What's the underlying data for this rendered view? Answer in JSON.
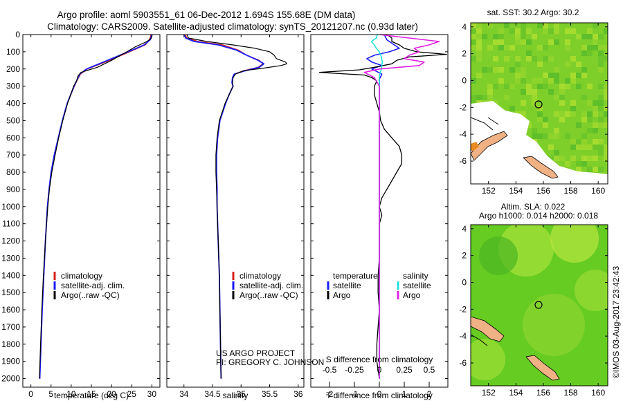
{
  "header": {
    "line1": "Argo profile: aoml 5903551_61 06-Dec-2012 1.694S 155.68E (DM data)",
    "line2": "Climatology: CARS2009. Satellite-adjusted climatology: synTS_20121207.nc (0.93d later)"
  },
  "colors": {
    "climatology": "#d42020",
    "satellite": "#1a1aff",
    "argo": "#000000",
    "salinity_satellite": "#22e0e0",
    "salinity_argo": "#e020e0"
  },
  "chart_data": [
    {
      "type": "line",
      "id": "temperature",
      "xlabel": "temperature (deg C)",
      "ylabel": "",
      "xlim": [
        -2,
        32
      ],
      "ylim": [
        2050,
        0
      ],
      "xticks": [
        0,
        5,
        10,
        15,
        20,
        25,
        30
      ],
      "yticks": [
        0,
        100,
        200,
        300,
        400,
        500,
        600,
        700,
        800,
        900,
        1000,
        1100,
        1200,
        1300,
        1400,
        1500,
        1600,
        1700,
        1800,
        1900,
        2000
      ],
      "legend": [
        "climatology",
        "satellite-adj. clim.",
        "Argo(..raw -QC)"
      ],
      "series": [
        {
          "name": "climatology",
          "color": "#d42020",
          "width": 1.4,
          "depth": [
            0,
            30,
            60,
            100,
            150,
            200,
            230,
            260,
            300,
            400,
            500,
            600,
            700,
            800,
            900,
            1000,
            1200,
            1400,
            1600,
            1800,
            2000
          ],
          "value": [
            29.8,
            29.4,
            28.4,
            24.5,
            19.5,
            14.0,
            12.3,
            11.6,
            10.8,
            9.0,
            7.8,
            6.8,
            5.8,
            5.0,
            4.5,
            4.1,
            3.6,
            3.2,
            2.8,
            2.5,
            2.2
          ]
        },
        {
          "name": "satellite-adj. clim.",
          "color": "#1a1aff",
          "width": 1.8,
          "depth": [
            0,
            30,
            60,
            100,
            150,
            200,
            230,
            260,
            300,
            400,
            500,
            600,
            700,
            800,
            900,
            1000,
            1200,
            1400,
            1600,
            1800,
            2000
          ],
          "value": [
            30.0,
            29.6,
            28.1,
            24.1,
            19.0,
            13.8,
            12.1,
            11.5,
            10.7,
            9.0,
            7.8,
            6.8,
            5.8,
            5.0,
            4.5,
            4.1,
            3.6,
            3.2,
            2.8,
            2.5,
            2.2
          ]
        },
        {
          "name": "Argo(..raw -QC)",
          "color": "#000000",
          "width": 1.2,
          "depth": [
            0,
            20,
            40,
            70,
            100,
            150,
            190,
            220,
            240,
            270,
            300,
            400,
            500,
            600,
            700,
            800,
            900,
            1000,
            1200,
            1400,
            1600,
            1800,
            2000
          ],
          "value": [
            30.1,
            29.9,
            28.8,
            26.0,
            23.8,
            20.0,
            16.5,
            12.4,
            11.7,
            11.3,
            10.6,
            9.1,
            7.9,
            6.9,
            6.0,
            5.2,
            4.6,
            4.2,
            3.6,
            3.1,
            2.7,
            2.4,
            2.1
          ]
        }
      ]
    },
    {
      "type": "line",
      "id": "salinity",
      "xlabel": "salinity",
      "xlim": [
        33.7,
        36.1
      ],
      "ylim": [
        2050,
        0
      ],
      "xticks": [
        34,
        34.5,
        35,
        35.5,
        36
      ],
      "legend": [
        "climatology",
        "satellite-adj. clim.",
        "Argo(..raw -QC)"
      ],
      "annotation": [
        "US ARGO PROJECT",
        "PI: GREGORY C. JOHNSON"
      ],
      "series": [
        {
          "name": "climatology",
          "color": "#d42020",
          "width": 1.4,
          "depth": [
            0,
            20,
            40,
            60,
            90,
            120,
            150,
            170,
            190,
            210,
            230,
            250,
            280,
            300,
            350,
            400,
            450,
            500,
            600,
            700,
            800,
            900,
            1000,
            1200,
            1400,
            1600,
            1800,
            2000
          ],
          "value": [
            34.02,
            34.05,
            34.25,
            34.68,
            34.95,
            35.1,
            35.32,
            35.38,
            35.3,
            35.05,
            34.88,
            34.85,
            34.84,
            34.86,
            34.79,
            34.73,
            34.68,
            34.63,
            34.59,
            34.57,
            34.57,
            34.58,
            34.58,
            34.6,
            34.62,
            34.63,
            34.64,
            34.65
          ]
        },
        {
          "name": "satellite-adj. clim.",
          "color": "#1a1aff",
          "width": 1.8,
          "depth": [
            0,
            20,
            40,
            60,
            90,
            120,
            150,
            170,
            190,
            210,
            230,
            250,
            280,
            300,
            350,
            400,
            450,
            500,
            600,
            700,
            800,
            900,
            1000,
            1200,
            1400,
            1600,
            1800,
            2000
          ],
          "value": [
            34.0,
            34.03,
            34.18,
            34.6,
            34.92,
            35.1,
            35.3,
            35.4,
            35.32,
            35.08,
            34.88,
            34.85,
            34.84,
            34.86,
            34.79,
            34.73,
            34.68,
            34.63,
            34.59,
            34.57,
            34.57,
            34.58,
            34.58,
            34.6,
            34.62,
            34.63,
            34.64,
            34.65
          ]
        },
        {
          "name": "Argo(..raw -QC)",
          "color": "#000000",
          "width": 1.2,
          "depth": [
            0,
            20,
            40,
            60,
            80,
            100,
            120,
            140,
            160,
            170,
            180,
            195,
            210,
            230,
            250,
            280,
            300,
            350,
            400,
            450,
            500,
            600,
            700,
            800,
            900,
            1000,
            1200,
            1400,
            1600,
            1800,
            2000
          ],
          "value": [
            34.05,
            34.08,
            34.4,
            34.85,
            35.25,
            35.5,
            35.58,
            35.62,
            35.78,
            35.8,
            35.7,
            35.4,
            35.05,
            34.9,
            34.86,
            34.85,
            34.86,
            34.79,
            34.72,
            34.67,
            34.62,
            34.58,
            34.56,
            34.56,
            34.57,
            34.58,
            34.6,
            34.62,
            34.63,
            34.64,
            34.65
          ]
        }
      ]
    },
    {
      "type": "line",
      "id": "differences",
      "xlabel_bottom": "T difference from climatology",
      "xlabel_top": "S difference from climatology",
      "xlim_T": [
        -2.75,
        2.75
      ],
      "xlim_S": [
        -0.6875,
        0.6875
      ],
      "xticks_T": [
        -2,
        -1,
        0,
        1,
        2
      ],
      "xticks_S": [
        -0.5,
        -0.25,
        0,
        0.25,
        0.5
      ],
      "legend_temperature": {
        "title": "temperature",
        "items": [
          "satellite",
          "Argo"
        ]
      },
      "legend_salinity": {
        "title": "salinity",
        "items": [
          "satellite",
          "Argo"
        ]
      },
      "series": [
        {
          "name": "temperature satellite",
          "color": "#1a1aff",
          "width": 1.6,
          "depth": [
            0,
            30,
            60,
            80,
            100,
            120,
            140,
            160,
            180,
            200,
            230,
            260,
            300,
            400,
            500,
            600,
            800,
            1000,
            1500,
            2000
          ],
          "value": [
            0.2,
            0.3,
            0.6,
            0.8,
            0.4,
            -0.2,
            -0.5,
            -0.3,
            0.1,
            -0.3,
            0.1,
            0.0,
            0.0,
            0.0,
            0.0,
            0.0,
            0.0,
            0.0,
            0.0,
            0.0
          ]
        },
        {
          "name": "temperature Argo",
          "color": "#000000",
          "width": 1.3,
          "depth": [
            0,
            20,
            40,
            60,
            80,
            100,
            115,
            130,
            150,
            170,
            190,
            205,
            220,
            235,
            250,
            270,
            300,
            350,
            400,
            450,
            500,
            550,
            600,
            650,
            700,
            750,
            800,
            850,
            900,
            950,
            1000,
            1050,
            1100,
            1200,
            1300,
            1400,
            1500,
            1600,
            1700,
            1800,
            1900,
            2000
          ],
          "value": [
            0.3,
            0.5,
            0.5,
            0.8,
            1.0,
            1.5,
            2.7,
            1.2,
            0.7,
            0.5,
            -0.2,
            -0.8,
            -2.4,
            -0.6,
            -0.3,
            -0.1,
            -0.2,
            -0.2,
            -0.1,
            0.0,
            0.05,
            0.2,
            0.5,
            0.8,
            0.9,
            0.9,
            0.7,
            0.5,
            0.3,
            0.1,
            0.0,
            0.1,
            0.0,
            0.0,
            0.0,
            -0.05,
            -0.05,
            0.0,
            -0.05,
            -0.1,
            -0.1,
            0.0
          ]
        },
        {
          "name": "salinity satellite",
          "color": "#22e0e0",
          "width": 1.6,
          "depth": [
            0,
            20,
            40,
            60,
            80,
            100,
            130,
            160,
            200,
            240,
            280,
            300,
            400,
            600,
            800,
            1000,
            1500,
            2000
          ],
          "value": [
            -0.02,
            -0.03,
            -0.08,
            -0.05,
            -0.03,
            0.0,
            0.02,
            0.03,
            0.02,
            0.0,
            0.0,
            0.0,
            0.0,
            0.0,
            0.0,
            0.0,
            0.0,
            0.0
          ]
        },
        {
          "name": "salinity Argo",
          "color": "#e020e0",
          "width": 1.6,
          "depth": [
            0,
            20,
            40,
            60,
            80,
            100,
            120,
            140,
            160,
            180,
            200,
            220,
            250,
            300,
            400,
            500,
            600,
            800,
            1000,
            1500,
            2000
          ],
          "value": [
            0.0,
            0.3,
            0.6,
            0.5,
            0.35,
            0.4,
            0.3,
            0.25,
            0.45,
            0.4,
            0.0,
            -0.15,
            -0.05,
            0.0,
            0.0,
            0.0,
            0.0,
            0.0,
            0.0,
            0.0,
            0.0
          ]
        }
      ]
    },
    {
      "type": "heatmap",
      "id": "sst-map",
      "title": "sat. SST: 30.2  Argo: 30.2",
      "xticks": [
        152,
        154,
        156,
        158,
        160
      ],
      "yticks": [
        4,
        2,
        0,
        -2,
        -4,
        -6
      ],
      "xlim": [
        150.7,
        160.7
      ],
      "ylim": [
        -7.7,
        4.3
      ],
      "marker": {
        "lon": 155.68,
        "lat": -1.694
      }
    },
    {
      "type": "heatmap",
      "id": "sla-map",
      "title_line1": "Altim. SLA: 0.022",
      "title_line2": "Argo h1000: 0.014 h2000: 0.018",
      "xticks": [
        152,
        154,
        156,
        158,
        160
      ],
      "yticks": [
        4,
        2,
        0,
        -2,
        -4,
        -6
      ],
      "xlim": [
        150.7,
        160.7
      ],
      "ylim": [
        -7.7,
        4.3
      ],
      "marker": {
        "lon": 155.68,
        "lat": -1.694
      }
    }
  ],
  "footer": {
    "imos_stamp": "©IMOS 03-Aug-2017 23:42:43"
  }
}
